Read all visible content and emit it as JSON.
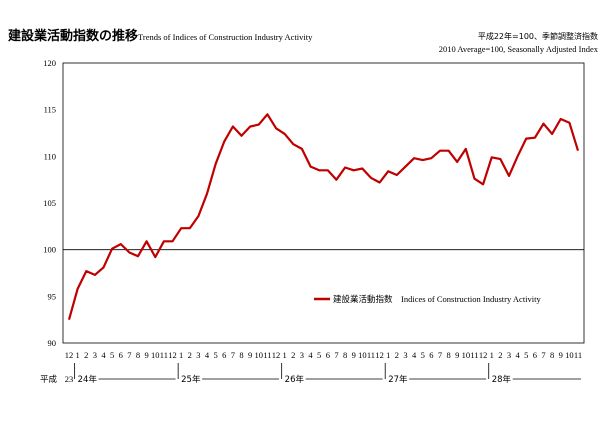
{
  "header": {
    "title_jp": "建設業活動指数の推移",
    "title_en": "Trends of Indices of Construction Industry Activity",
    "note_jp": "平成22年=100、季節調整済指数",
    "note_en": "2010 Average=100, Seasonally Adjusted Index"
  },
  "chart_data": {
    "type": "line",
    "ylim": [
      90,
      120
    ],
    "yticks": [
      "90",
      "95",
      "100",
      "105",
      "110",
      "115",
      "120"
    ],
    "reference_line": 100,
    "grid": false,
    "legend_position": "lower-right inside plot",
    "x_month_labels": [
      "12",
      "1",
      "2",
      "3",
      "4",
      "5",
      "6",
      "7",
      "8",
      "9",
      "10",
      "11",
      "12",
      "1",
      "2",
      "3",
      "4",
      "5",
      "6",
      "7",
      "8",
      "9",
      "10",
      "11",
      "12",
      "1",
      "2",
      "3",
      "4",
      "5",
      "6",
      "7",
      "8",
      "9",
      "10",
      "11",
      "12",
      "1",
      "2",
      "3",
      "4",
      "5",
      "6",
      "7",
      "8",
      "9",
      "10",
      "11",
      "12",
      "1",
      "2",
      "3",
      "4",
      "5",
      "6",
      "7",
      "8",
      "9",
      "10",
      "11"
    ],
    "era_label": "平成",
    "year_labels": [
      {
        "label": "23",
        "start_index": 0
      },
      {
        "label": "24年",
        "start_index": 1
      },
      {
        "label": "25年",
        "start_index": 13
      },
      {
        "label": "26年",
        "start_index": 25
      },
      {
        "label": "27年",
        "start_index": 37
      },
      {
        "label": "28年",
        "start_index": 49
      }
    ],
    "series": [
      {
        "name": "建設業活動指数　Indices of Construction Industry Activity",
        "color": "#c00000",
        "values": [
          92.5,
          95.8,
          97.7,
          97.3,
          98.1,
          100.1,
          100.6,
          99.7,
          99.3,
          100.9,
          99.2,
          100.9,
          100.9,
          102.3,
          102.3,
          103.6,
          106.0,
          109.2,
          111.6,
          113.2,
          112.2,
          113.2,
          113.4,
          114.5,
          113.0,
          112.4,
          111.3,
          110.8,
          108.9,
          108.5,
          108.5,
          107.5,
          108.8,
          108.5,
          108.7,
          107.7,
          107.2,
          108.4,
          108.0,
          108.9,
          109.8,
          109.6,
          109.8,
          110.6,
          110.6,
          109.4,
          110.8,
          107.6,
          107.0,
          109.9,
          109.7,
          107.9,
          110.0,
          111.9,
          112.0,
          113.5,
          112.4,
          114.0,
          113.6,
          110.6
        ]
      }
    ]
  }
}
